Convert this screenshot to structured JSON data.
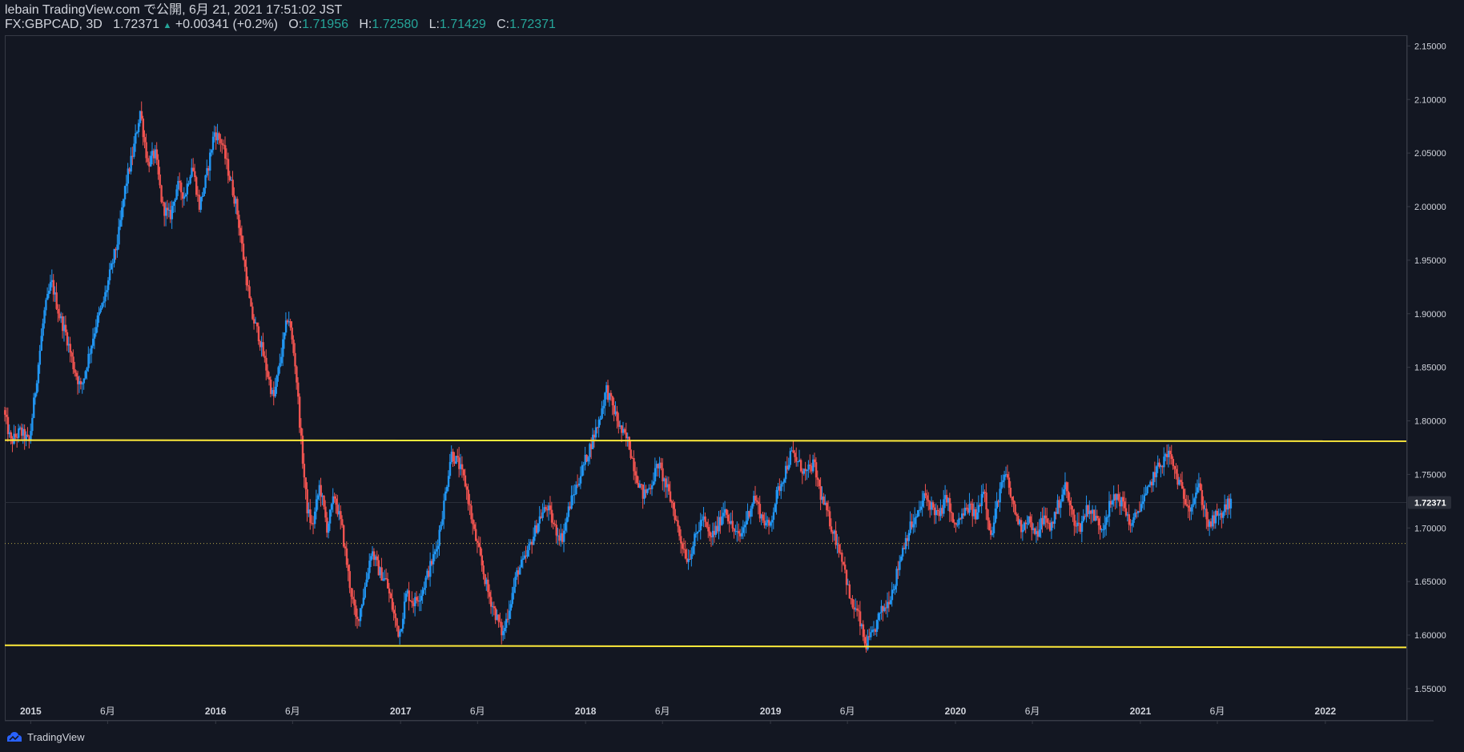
{
  "header": {
    "publisher": "lebain TradingView.com で公開, 6月 21, 2021 17:51:02 JST",
    "symbol": "FX:GBPCAD, 3D",
    "last": "1.72371",
    "arrow": "▲",
    "change": "+0.00341 (+0.2%)",
    "o_label": "O:",
    "o_value": "1.71956",
    "h_label": "H:",
    "h_value": "1.72580",
    "l_label": "L:",
    "l_value": "1.71429",
    "c_label": "C:",
    "c_value": "1.72371"
  },
  "footer": {
    "brand": "TradingView"
  },
  "colors": {
    "background": "#131722",
    "up": "#2962ff",
    "up_alt": "#2196f3",
    "down": "#ef5350",
    "level_line": "#ffeb3b",
    "axis_text": "#d1d4dc",
    "border": "#363a45"
  },
  "chart_data": {
    "type": "candlestick",
    "symbol": "FX:GBPCAD",
    "interval": "3D",
    "ylim": [
      1.52,
      2.16
    ],
    "y_ticks": [
      "2.15000",
      "2.10000",
      "2.05000",
      "2.00000",
      "1.95000",
      "1.90000",
      "1.85000",
      "1.80000",
      "1.75000",
      "1.70000",
      "1.65000",
      "1.60000",
      "1.55000"
    ],
    "y_tick_values": [
      2.15,
      2.1,
      2.05,
      2.0,
      1.95,
      1.9,
      1.85,
      1.8,
      1.75,
      1.7,
      1.65,
      1.6,
      1.55
    ],
    "x_range": [
      2014.86,
      2022.23
    ],
    "x_ticks": [
      {
        "label": "2015",
        "t": 2015.0
      },
      {
        "label": "6月",
        "t": 2015.416
      },
      {
        "label": "2016",
        "t": 2016.0
      },
      {
        "label": "6月",
        "t": 2016.416
      },
      {
        "label": "2017",
        "t": 2017.0
      },
      {
        "label": "6月",
        "t": 2017.416
      },
      {
        "label": "2018",
        "t": 2018.0
      },
      {
        "label": "6月",
        "t": 2018.416
      },
      {
        "label": "2019",
        "t": 2019.0
      },
      {
        "label": "6月",
        "t": 2019.416
      },
      {
        "label": "2020",
        "t": 2020.0
      },
      {
        "label": "6月",
        "t": 2020.416
      },
      {
        "label": "2021",
        "t": 2021.0
      },
      {
        "label": "6月",
        "t": 2021.416
      },
      {
        "label": "2022",
        "t": 2022.0
      }
    ],
    "last_price_label": "1.72371",
    "last_price": 1.72371,
    "horizontal_lines": [
      {
        "name": "resistance",
        "price": 1.782,
        "price_end": 1.781,
        "style": "solid"
      },
      {
        "name": "support",
        "price": 1.5905,
        "price_end": 1.5885,
        "style": "solid"
      },
      {
        "name": "reference",
        "price": 1.6855,
        "price_end": 1.6855,
        "style": "dotted"
      }
    ],
    "price_path": [
      [
        2014.86,
        1.81
      ],
      [
        2014.9,
        1.78
      ],
      [
        2014.95,
        1.79
      ],
      [
        2015.0,
        1.78
      ],
      [
        2015.04,
        1.84
      ],
      [
        2015.08,
        1.9
      ],
      [
        2015.12,
        1.93
      ],
      [
        2015.16,
        1.9
      ],
      [
        2015.2,
        1.88
      ],
      [
        2015.24,
        1.85
      ],
      [
        2015.28,
        1.83
      ],
      [
        2015.32,
        1.86
      ],
      [
        2015.36,
        1.89
      ],
      [
        2015.4,
        1.91
      ],
      [
        2015.44,
        1.94
      ],
      [
        2015.48,
        1.97
      ],
      [
        2015.52,
        2.02
      ],
      [
        2015.56,
        2.05
      ],
      [
        2015.6,
        2.09
      ],
      [
        2015.64,
        2.04
      ],
      [
        2015.68,
        2.05
      ],
      [
        2015.72,
        2.0
      ],
      [
        2015.76,
        1.99
      ],
      [
        2015.8,
        2.02
      ],
      [
        2015.84,
        2.01
      ],
      [
        2015.88,
        2.04
      ],
      [
        2015.92,
        2.0
      ],
      [
        2015.96,
        2.03
      ],
      [
        2016.0,
        2.07
      ],
      [
        2016.04,
        2.06
      ],
      [
        2016.08,
        2.03
      ],
      [
        2016.12,
        2.0
      ],
      [
        2016.16,
        1.95
      ],
      [
        2016.2,
        1.9
      ],
      [
        2016.24,
        1.88
      ],
      [
        2016.28,
        1.85
      ],
      [
        2016.32,
        1.82
      ],
      [
        2016.36,
        1.86
      ],
      [
        2016.4,
        1.9
      ],
      [
        2016.44,
        1.85
      ],
      [
        2016.47,
        1.78
      ],
      [
        2016.5,
        1.72
      ],
      [
        2016.53,
        1.7
      ],
      [
        2016.57,
        1.74
      ],
      [
        2016.61,
        1.7
      ],
      [
        2016.65,
        1.73
      ],
      [
        2016.69,
        1.7
      ],
      [
        2016.73,
        1.65
      ],
      [
        2016.77,
        1.61
      ],
      [
        2016.81,
        1.64
      ],
      [
        2016.85,
        1.68
      ],
      [
        2016.89,
        1.66
      ],
      [
        2016.93,
        1.65
      ],
      [
        2016.97,
        1.62
      ],
      [
        2017.0,
        1.6
      ],
      [
        2017.04,
        1.64
      ],
      [
        2017.08,
        1.63
      ],
      [
        2017.12,
        1.64
      ],
      [
        2017.16,
        1.66
      ],
      [
        2017.2,
        1.68
      ],
      [
        2017.24,
        1.72
      ],
      [
        2017.28,
        1.77
      ],
      [
        2017.32,
        1.76
      ],
      [
        2017.36,
        1.74
      ],
      [
        2017.4,
        1.7
      ],
      [
        2017.44,
        1.67
      ],
      [
        2017.48,
        1.64
      ],
      [
        2017.52,
        1.62
      ],
      [
        2017.56,
        1.6
      ],
      [
        2017.6,
        1.63
      ],
      [
        2017.64,
        1.66
      ],
      [
        2017.68,
        1.67
      ],
      [
        2017.72,
        1.69
      ],
      [
        2017.76,
        1.71
      ],
      [
        2017.8,
        1.72
      ],
      [
        2017.84,
        1.7
      ],
      [
        2017.88,
        1.69
      ],
      [
        2017.92,
        1.72
      ],
      [
        2017.96,
        1.74
      ],
      [
        2018.0,
        1.76
      ],
      [
        2018.04,
        1.78
      ],
      [
        2018.08,
        1.8
      ],
      [
        2018.12,
        1.83
      ],
      [
        2018.16,
        1.81
      ],
      [
        2018.2,
        1.79
      ],
      [
        2018.24,
        1.78
      ],
      [
        2018.28,
        1.75
      ],
      [
        2018.32,
        1.73
      ],
      [
        2018.36,
        1.74
      ],
      [
        2018.4,
        1.76
      ],
      [
        2018.44,
        1.74
      ],
      [
        2018.48,
        1.72
      ],
      [
        2018.52,
        1.69
      ],
      [
        2018.56,
        1.67
      ],
      [
        2018.6,
        1.69
      ],
      [
        2018.64,
        1.71
      ],
      [
        2018.68,
        1.69
      ],
      [
        2018.72,
        1.7
      ],
      [
        2018.76,
        1.72
      ],
      [
        2018.8,
        1.7
      ],
      [
        2018.84,
        1.69
      ],
      [
        2018.88,
        1.71
      ],
      [
        2018.92,
        1.73
      ],
      [
        2018.96,
        1.71
      ],
      [
        2019.0,
        1.7
      ],
      [
        2019.04,
        1.73
      ],
      [
        2019.08,
        1.75
      ],
      [
        2019.12,
        1.77
      ],
      [
        2019.16,
        1.76
      ],
      [
        2019.2,
        1.75
      ],
      [
        2019.24,
        1.76
      ],
      [
        2019.28,
        1.73
      ],
      [
        2019.32,
        1.71
      ],
      [
        2019.36,
        1.69
      ],
      [
        2019.4,
        1.67
      ],
      [
        2019.44,
        1.63
      ],
      [
        2019.48,
        1.62
      ],
      [
        2019.52,
        1.59
      ],
      [
        2019.56,
        1.6
      ],
      [
        2019.6,
        1.62
      ],
      [
        2019.64,
        1.63
      ],
      [
        2019.68,
        1.65
      ],
      [
        2019.72,
        1.68
      ],
      [
        2019.76,
        1.7
      ],
      [
        2019.8,
        1.71
      ],
      [
        2019.84,
        1.73
      ],
      [
        2019.88,
        1.72
      ],
      [
        2019.92,
        1.71
      ],
      [
        2019.96,
        1.73
      ],
      [
        2020.0,
        1.7
      ],
      [
        2020.04,
        1.71
      ],
      [
        2020.08,
        1.72
      ],
      [
        2020.12,
        1.71
      ],
      [
        2020.16,
        1.74
      ],
      [
        2020.2,
        1.69
      ],
      [
        2020.24,
        1.73
      ],
      [
        2020.28,
        1.75
      ],
      [
        2020.32,
        1.72
      ],
      [
        2020.36,
        1.7
      ],
      [
        2020.4,
        1.71
      ],
      [
        2020.44,
        1.69
      ],
      [
        2020.48,
        1.71
      ],
      [
        2020.52,
        1.7
      ],
      [
        2020.56,
        1.72
      ],
      [
        2020.6,
        1.74
      ],
      [
        2020.64,
        1.71
      ],
      [
        2020.68,
        1.7
      ],
      [
        2020.72,
        1.72
      ],
      [
        2020.76,
        1.71
      ],
      [
        2020.8,
        1.7
      ],
      [
        2020.84,
        1.72
      ],
      [
        2020.88,
        1.73
      ],
      [
        2020.92,
        1.72
      ],
      [
        2020.96,
        1.7
      ],
      [
        2021.0,
        1.72
      ],
      [
        2021.04,
        1.73
      ],
      [
        2021.08,
        1.75
      ],
      [
        2021.12,
        1.76
      ],
      [
        2021.16,
        1.77
      ],
      [
        2021.2,
        1.75
      ],
      [
        2021.24,
        1.73
      ],
      [
        2021.28,
        1.72
      ],
      [
        2021.32,
        1.74
      ],
      [
        2021.35,
        1.72
      ],
      [
        2021.38,
        1.7
      ],
      [
        2021.41,
        1.71
      ],
      [
        2021.44,
        1.71
      ],
      [
        2021.47,
        1.72
      ],
      [
        2021.49,
        1.7237
      ]
    ]
  }
}
